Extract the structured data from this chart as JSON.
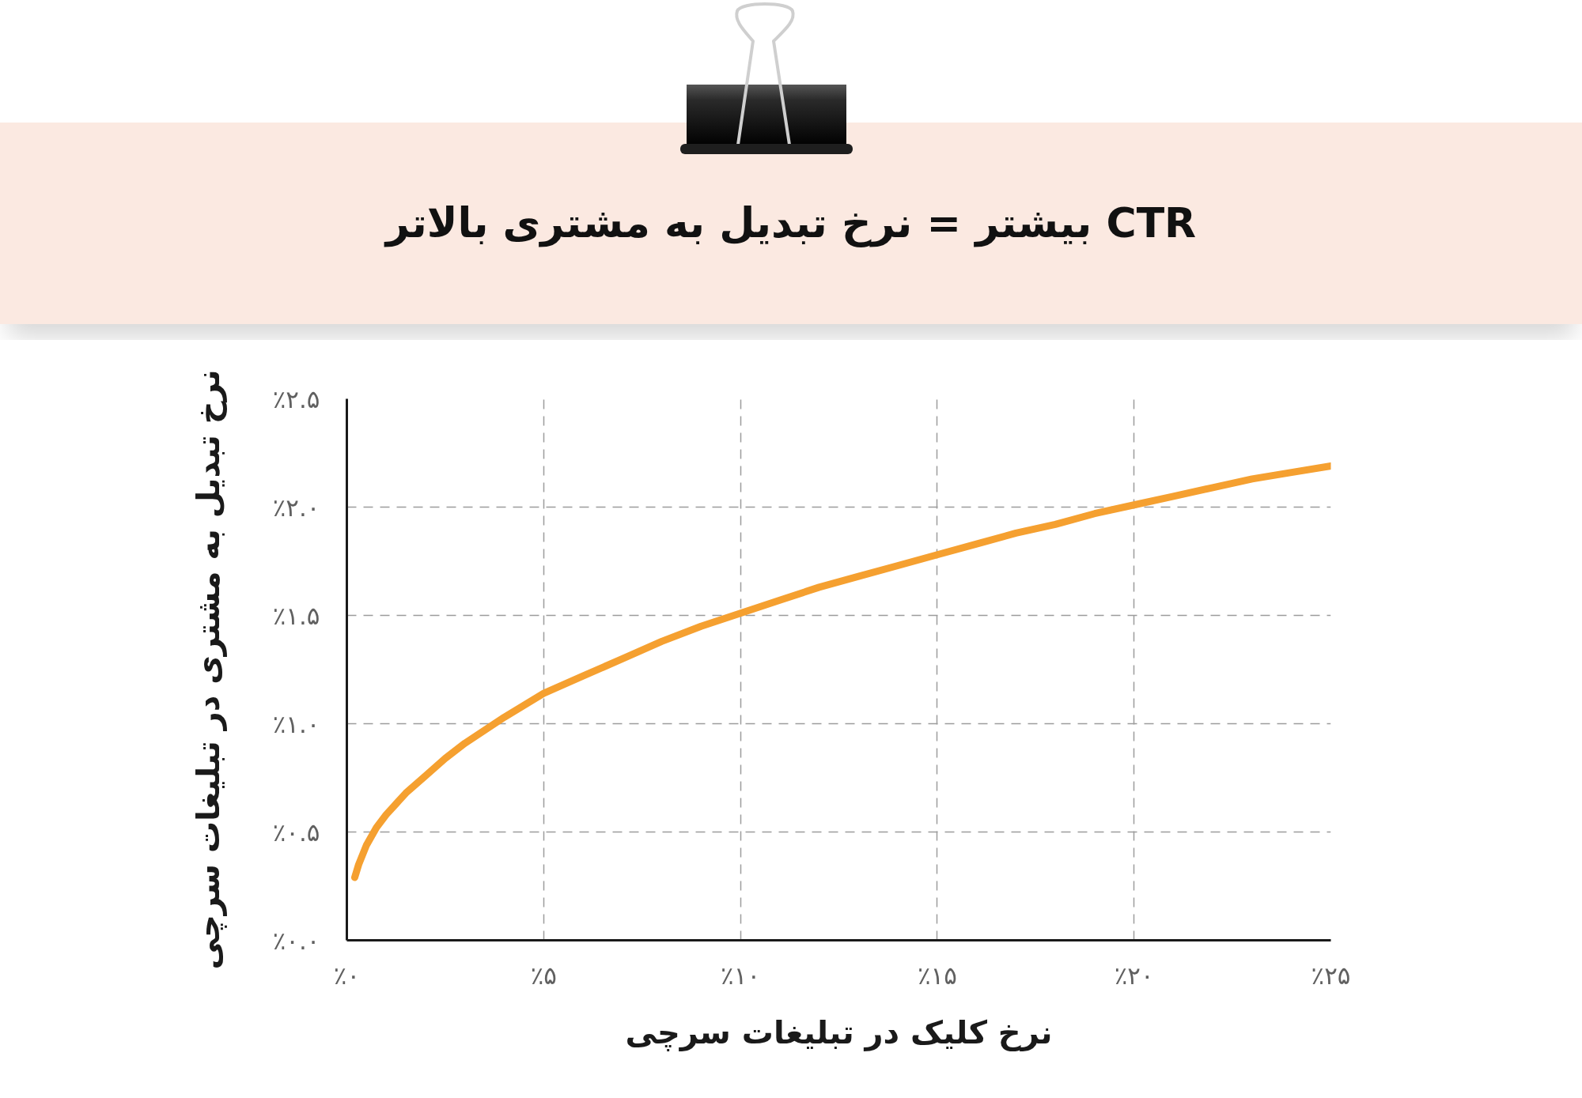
{
  "chart_data": {
    "type": "line",
    "title": "CTR بیشتر = نرخ تبدیل به مشتری بالاتر",
    "xlabel": "نرخ کلیک در تبلیغات سرچی",
    "ylabel": "نرخ تبدیل به مشتری در تبلیغات سرچی",
    "x": [
      0.2,
      0.3,
      0.5,
      0.75,
      1,
      1.25,
      1.5,
      2,
      2.5,
      3,
      3.5,
      4,
      5,
      6,
      7,
      8,
      9,
      10,
      11,
      12,
      13,
      14,
      15,
      16,
      17,
      18,
      19,
      20,
      21,
      22,
      23,
      24,
      25
    ],
    "series": [
      {
        "color": "#f5a030",
        "values": [
          0.29,
          0.35,
          0.44,
          0.52,
          0.58,
          0.63,
          0.68,
          0.76,
          0.84,
          0.91,
          0.97,
          1.03,
          1.14,
          1.22,
          1.3,
          1.38,
          1.45,
          1.51,
          1.57,
          1.63,
          1.68,
          1.73,
          1.78,
          1.83,
          1.88,
          1.92,
          1.97,
          2.01,
          2.05,
          2.09,
          2.13,
          2.16,
          2.19
        ]
      }
    ],
    "xlim": [
      0,
      25
    ],
    "ylim": [
      0,
      2.5
    ],
    "xticks": [
      {
        "value": 0,
        "label": "٪۰"
      },
      {
        "value": 5,
        "label": "٪۵"
      },
      {
        "value": 10,
        "label": "٪۱۰"
      },
      {
        "value": 15,
        "label": "٪۱۵"
      },
      {
        "value": 20,
        "label": "٪۲۰"
      },
      {
        "value": 25,
        "label": "٪۲۵"
      }
    ],
    "yticks": [
      {
        "value": 0,
        "label": "٪۰.۰"
      },
      {
        "value": 0.5,
        "label": "٪۰.۵"
      },
      {
        "value": 1,
        "label": "٪۱.۰"
      },
      {
        "value": 1.5,
        "label": "٪۱.۵"
      },
      {
        "value": 2,
        "label": "٪۲.۰"
      },
      {
        "value": 2.5,
        "label": "٪۲.۵"
      }
    ],
    "grid": true,
    "line_style": "solid"
  }
}
